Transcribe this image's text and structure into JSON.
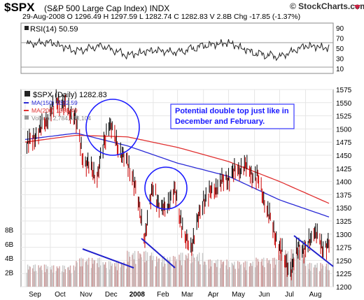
{
  "header": {
    "ticker": "$SPX",
    "full_name": "(S&P 500 Large Cap Index)",
    "exchange": "INDX",
    "date": "29-Aug-2008",
    "quote_line": "29-Aug-2008   O 1296.49  H 1297.59  L 1282.74  C 1282.83  V 2.8B  Chg -17.85 (-1.37%)",
    "source": "© StockCharts.com"
  },
  "rsi_panel": {
    "label": "RSI(14) 50.59",
    "ticks": [
      "90",
      "70",
      "50",
      "30",
      "10"
    ]
  },
  "price_panel": {
    "legend": [
      {
        "text": "$SPX (Daily) 1282.83",
        "color": "#000000"
      },
      {
        "text": "MA(150) 1332.59",
        "color": "#2b2bd6"
      },
      {
        "text": "MA(200) 1358.49",
        "color": "#e03030"
      },
      {
        "text": "Volume 2,784,463,104",
        "color": "#888888"
      }
    ],
    "annotation": {
      "line1": "Potential double top just like in",
      "line2": "December and February."
    },
    "price_ticks": [
      "1575",
      "1550",
      "1525",
      "1500",
      "1475",
      "1450",
      "1425",
      "1400",
      "1375",
      "1350",
      "1325",
      "1300",
      "1275",
      "1250",
      "1225",
      "1200"
    ],
    "volume_ticks": [
      "8B",
      "6B",
      "4B",
      "2B"
    ],
    "x_labels": [
      "Sep",
      "Oct",
      "Nov",
      "Dec",
      "2008",
      "Feb",
      "Mar",
      "Apr",
      "May",
      "Jun",
      "Jul",
      "Aug"
    ]
  },
  "colors": {
    "price": "#000000",
    "down_bar": "#cc0000",
    "ma150": "#2b2bd6",
    "ma200": "#e03030",
    "volume": "#d8b0b0",
    "annotation": "#1a1aff",
    "trendline": "#2020cc"
  },
  "chart_data": [
    {
      "type": "line",
      "title": "RSI(14) 50.59",
      "ylim": [
        0,
        100
      ],
      "y_ticks": [
        10,
        30,
        50,
        70,
        90
      ],
      "reference_lines": [
        30,
        70
      ],
      "grid": true,
      "series": [
        {
          "name": "RSI(14)",
          "x": [
            "2007-09-01",
            "2007-10-01",
            "2007-11-01",
            "2007-12-01",
            "2008-01-01",
            "2008-02-01",
            "2008-03-01",
            "2008-04-01",
            "2008-05-01",
            "2008-06-01",
            "2008-07-01",
            "2008-08-01",
            "2008-08-29"
          ],
          "values": [
            58,
            62,
            44,
            55,
            36,
            46,
            42,
            55,
            61,
            40,
            33,
            55,
            50.59
          ]
        }
      ]
    },
    {
      "type": "line",
      "title": "$SPX (Daily) 1282.83",
      "ylim": [
        1200,
        1575
      ],
      "legend": "top-left",
      "grid": true,
      "series": [
        {
          "name": "$SPX (Daily)",
          "x": [
            "2007-09-01",
            "2007-09-20",
            "2007-10-10",
            "2007-10-30",
            "2007-11-10",
            "2007-11-26",
            "2007-12-10",
            "2007-12-20",
            "2008-01-07",
            "2008-01-22",
            "2008-02-01",
            "2008-02-10",
            "2008-02-27",
            "2008-03-10",
            "2008-03-17",
            "2008-04-01",
            "2008-04-20",
            "2008-05-19",
            "2008-06-05",
            "2008-06-25",
            "2008-07-07",
            "2008-07-15",
            "2008-07-24",
            "2008-08-01",
            "2008-08-11",
            "2008-08-20",
            "2008-08-29"
          ],
          "values": [
            1465,
            1500,
            1555,
            1525,
            1440,
            1410,
            1515,
            1470,
            1415,
            1295,
            1395,
            1340,
            1380,
            1290,
            1275,
            1365,
            1395,
            1430,
            1405,
            1300,
            1250,
            1230,
            1280,
            1265,
            1310,
            1275,
            1282.83
          ]
        },
        {
          "name": "MA(150)",
          "x": [
            "2007-09-01",
            "2007-11-01",
            "2008-01-01",
            "2008-03-01",
            "2008-05-01",
            "2008-07-01",
            "2008-08-29"
          ],
          "values": [
            1480,
            1492,
            1468,
            1435,
            1410,
            1365,
            1332.59
          ]
        },
        {
          "name": "MA(200)",
          "x": [
            "2007-09-01",
            "2007-11-01",
            "2008-01-01",
            "2008-03-01",
            "2008-05-01",
            "2008-07-01",
            "2008-08-29"
          ],
          "values": [
            1475,
            1488,
            1485,
            1465,
            1438,
            1400,
            1358.49
          ]
        }
      ]
    },
    {
      "type": "bar",
      "title": "Volume 2,784,463,104",
      "ylim": [
        0,
        10
      ],
      "y_unit": "B",
      "y_ticks": [
        2,
        4,
        6,
        8
      ],
      "series": [
        {
          "name": "Volume",
          "x": [
            "2007-09",
            "2007-10",
            "2007-11",
            "2007-12",
            "2008-01",
            "2008-02",
            "2008-03",
            "2008-04",
            "2008-05",
            "2008-06",
            "2008-07",
            "2008-08"
          ],
          "values": [
            2.6,
            2.5,
            3.4,
            3.0,
            4.2,
            3.6,
            4.0,
            3.2,
            3.0,
            3.4,
            4.4,
            2.8
          ]
        }
      ]
    }
  ]
}
